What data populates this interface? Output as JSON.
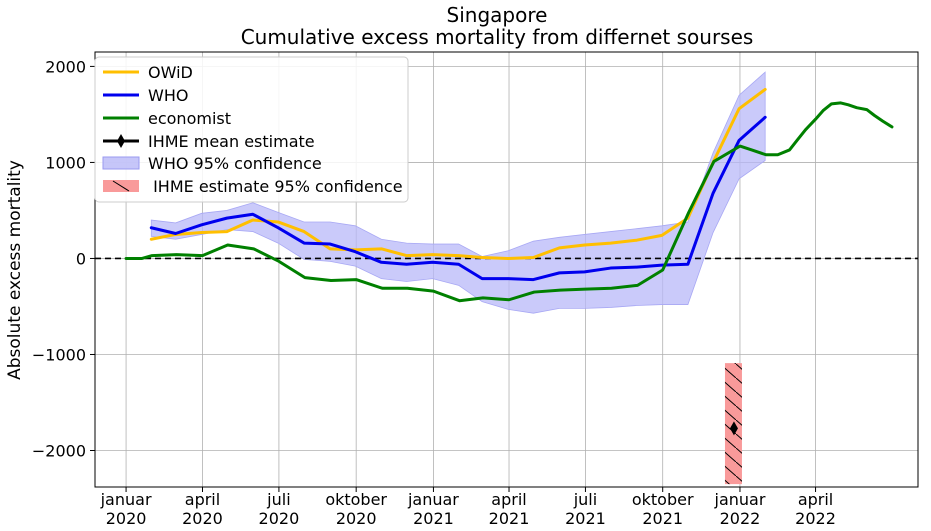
{
  "chart_data": {
    "type": "line",
    "title": "Singapore",
    "subtitle": "Cumulative excess mortality from differnet sourses",
    "xlabel": "",
    "ylabel": "Absolute excess mortality",
    "x_ticks": [
      {
        "date": "2020-01-01",
        "label": [
          "januar",
          "2020"
        ]
      },
      {
        "date": "2020-04-01",
        "label": [
          "april",
          "2020"
        ]
      },
      {
        "date": "2020-07-01",
        "label": [
          "juli",
          "2020"
        ]
      },
      {
        "date": "2020-10-01",
        "label": [
          "oktober",
          "2020"
        ]
      },
      {
        "date": "2021-01-01",
        "label": [
          "januar",
          "2021"
        ]
      },
      {
        "date": "2021-04-01",
        "label": [
          "april",
          "2021"
        ]
      },
      {
        "date": "2021-07-01",
        "label": [
          "juli",
          "2021"
        ]
      },
      {
        "date": "2021-10-01",
        "label": [
          "oktober",
          "2021"
        ]
      },
      {
        "date": "2022-01-01",
        "label": [
          "januar",
          "2022"
        ]
      },
      {
        "date": "2022-04-01",
        "label": [
          "april",
          "2022"
        ]
      }
    ],
    "y_ticks": [
      -2000,
      -1000,
      0,
      1000,
      2000
    ],
    "y_tick_labels": [
      "−2000",
      "−1000",
      "0",
      "1000",
      "2000"
    ],
    "xlim": [
      "2019-11-25",
      "2022-08-01"
    ],
    "ylim": [
      -2380,
      2150
    ],
    "grid": true,
    "legend_position": "top-left",
    "reference_line": {
      "y": 0,
      "style": "dashed",
      "color": "#000000"
    },
    "series": [
      {
        "name": "OWiD",
        "color": "#FFBF00",
        "x": [
          "2020-01-31",
          "2020-02-29",
          "2020-03-31",
          "2020-04-30",
          "2020-05-31",
          "2020-06-30",
          "2020-07-31",
          "2020-08-31",
          "2020-09-30",
          "2020-10-31",
          "2020-11-30",
          "2020-12-31",
          "2021-01-31",
          "2021-02-28",
          "2021-03-31",
          "2021-04-30",
          "2021-05-31",
          "2021-06-30",
          "2021-07-31",
          "2021-08-31",
          "2021-09-30",
          "2021-10-31",
          "2021-11-30",
          "2021-12-31",
          "2022-01-31"
        ],
        "values": [
          200,
          250,
          270,
          280,
          400,
          380,
          280,
          100,
          90,
          100,
          30,
          40,
          30,
          10,
          0,
          10,
          110,
          140,
          160,
          190,
          240,
          420,
          1000,
          1560,
          1760
        ]
      },
      {
        "name": "WHO",
        "color": "#0000EE",
        "x": [
          "2020-01-31",
          "2020-02-29",
          "2020-03-31",
          "2020-04-30",
          "2020-05-31",
          "2020-06-30",
          "2020-07-31",
          "2020-08-31",
          "2020-09-30",
          "2020-10-31",
          "2020-11-30",
          "2020-12-31",
          "2021-01-31",
          "2021-02-28",
          "2021-03-31",
          "2021-04-30",
          "2021-05-31",
          "2021-06-30",
          "2021-07-31",
          "2021-08-31",
          "2021-09-30",
          "2021-10-31",
          "2021-11-30",
          "2021-12-31",
          "2022-01-31"
        ],
        "values": [
          320,
          260,
          350,
          420,
          460,
          320,
          160,
          150,
          70,
          -40,
          -60,
          -40,
          -60,
          -210,
          -210,
          -220,
          -150,
          -140,
          -100,
          -90,
          -70,
          -60,
          680,
          1230,
          1470
        ]
      },
      {
        "name": "economist",
        "color": "#008000",
        "x": [
          "2020-01-01",
          "2020-01-13",
          "2020-01-20",
          "2020-02-01",
          "2020-03-01",
          "2020-04-01",
          "2020-05-01",
          "2020-06-01",
          "2020-07-01",
          "2020-08-01",
          "2020-09-01",
          "2020-10-01",
          "2020-11-01",
          "2020-12-01",
          "2021-01-01",
          "2021-02-01",
          "2021-03-01",
          "2021-04-01",
          "2021-05-01",
          "2021-06-01",
          "2021-07-01",
          "2021-08-01",
          "2021-09-01",
          "2021-10-01",
          "2021-11-01",
          "2021-12-01",
          "2022-01-01",
          "2022-01-15",
          "2022-02-01",
          "2022-02-15",
          "2022-03-01",
          "2022-03-10",
          "2022-03-20",
          "2022-04-01",
          "2022-04-10",
          "2022-04-20",
          "2022-05-01",
          "2022-05-10",
          "2022-05-20",
          "2022-06-01",
          "2022-06-10",
          "2022-06-20",
          "2022-07-01"
        ],
        "values": [
          0,
          0,
          0,
          30,
          40,
          30,
          140,
          100,
          -30,
          -200,
          -230,
          -220,
          -310,
          -310,
          -340,
          -440,
          -410,
          -430,
          -350,
          -330,
          -320,
          -310,
          -280,
          -120,
          480,
          1010,
          1170,
          1130,
          1080,
          1080,
          1130,
          1230,
          1340,
          1450,
          1540,
          1610,
          1620,
          1600,
          1570,
          1550,
          1490,
          1430,
          1370
        ]
      }
    ],
    "bands": [
      {
        "name": "WHO 95% confidence",
        "color": "#B8B8F8",
        "x": [
          "2020-01-31",
          "2020-02-29",
          "2020-03-31",
          "2020-04-30",
          "2020-05-31",
          "2020-06-30",
          "2020-07-31",
          "2020-08-31",
          "2020-09-30",
          "2020-10-31",
          "2020-11-30",
          "2020-12-31",
          "2021-01-31",
          "2021-02-28",
          "2021-03-31",
          "2021-04-30",
          "2021-05-31",
          "2021-06-30",
          "2021-07-31",
          "2021-08-31",
          "2021-09-30",
          "2021-10-31",
          "2021-11-30",
          "2021-12-31",
          "2022-01-31"
        ],
        "lower": [
          230,
          200,
          250,
          300,
          280,
          160,
          -10,
          -30,
          -80,
          -210,
          -240,
          -210,
          -280,
          -450,
          -530,
          -570,
          -520,
          -520,
          -510,
          -490,
          -480,
          -480,
          270,
          830,
          1020
        ],
        "upper": [
          400,
          370,
          470,
          500,
          580,
          480,
          380,
          380,
          340,
          200,
          160,
          150,
          150,
          20,
          80,
          180,
          220,
          250,
          280,
          310,
          340,
          380,
          1100,
          1700,
          1940
        ]
      }
    ],
    "ihme": {
      "mean_name": "IHME mean estimate",
      "ci_name": "IHME estimate 95% confidence",
      "date": "2022-01-01",
      "mean": -1770,
      "lower": -2350,
      "upper": -1090,
      "mean_color": "#000000",
      "ci_color": "#F99A9A"
    },
    "legend": [
      "OWiD",
      "WHO",
      "economist",
      "IHME mean estimate",
      "WHO 95% confidence",
      " IHME estimate 95% confidence"
    ]
  }
}
